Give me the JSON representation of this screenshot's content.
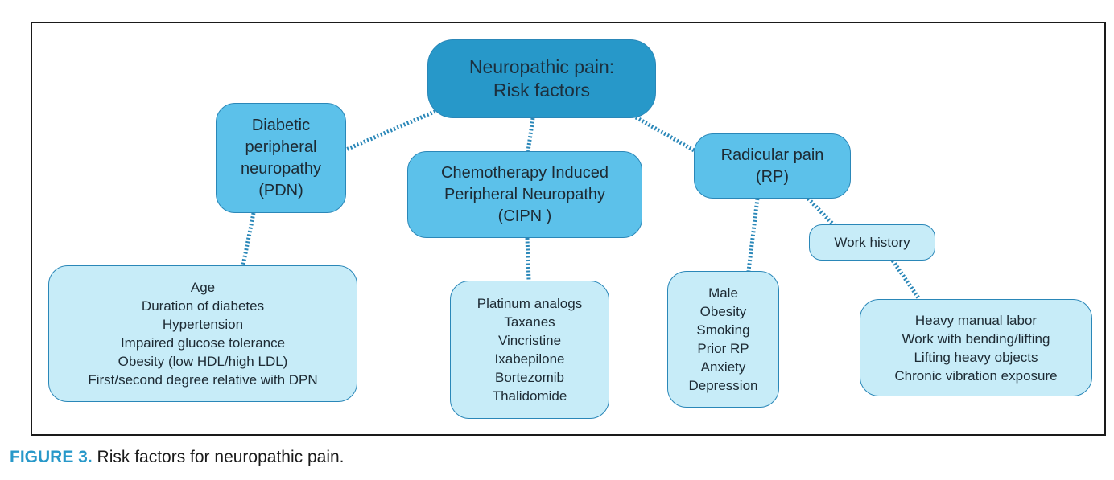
{
  "diagram": {
    "root": {
      "lines": [
        "Neuropathic pain:",
        "Risk factors"
      ]
    },
    "pdn": {
      "title": [
        "Diabetic",
        "peripheral",
        "neuropathy",
        "(PDN)"
      ],
      "factors": [
        "Age",
        "Duration of diabetes",
        "Hypertension",
        "Impaired glucose tolerance",
        "Obesity (low HDL/high LDL)",
        "First/second degree relative with DPN"
      ]
    },
    "cipn": {
      "title": [
        "Chemotherapy Induced",
        "Peripheral Neuropathy",
        "(CIPN )"
      ],
      "factors": [
        "Platinum analogs",
        "Taxanes",
        "Vincristine",
        "Ixabepilone",
        "Bortezomib",
        "Thalidomide"
      ]
    },
    "rp": {
      "title": [
        "Radicular pain",
        "(RP)"
      ],
      "factors": [
        "Male",
        "Obesity",
        "Smoking",
        "Prior RP",
        "Anxiety",
        "Depression"
      ],
      "work_history": {
        "label": "Work history",
        "factors": [
          "Heavy manual labor",
          "Work with bending/lifting",
          "Lifting heavy objects",
          "Chronic vibration exposure"
        ]
      }
    },
    "colors": {
      "root_fill": "#2798c9",
      "category_fill": "#5cc1ea",
      "leaf_fill": "#c7ecf8",
      "connector": "#2a87b8"
    }
  },
  "caption": {
    "label": "FIGURE 3.",
    "text": " Risk factors for neuropathic pain."
  }
}
